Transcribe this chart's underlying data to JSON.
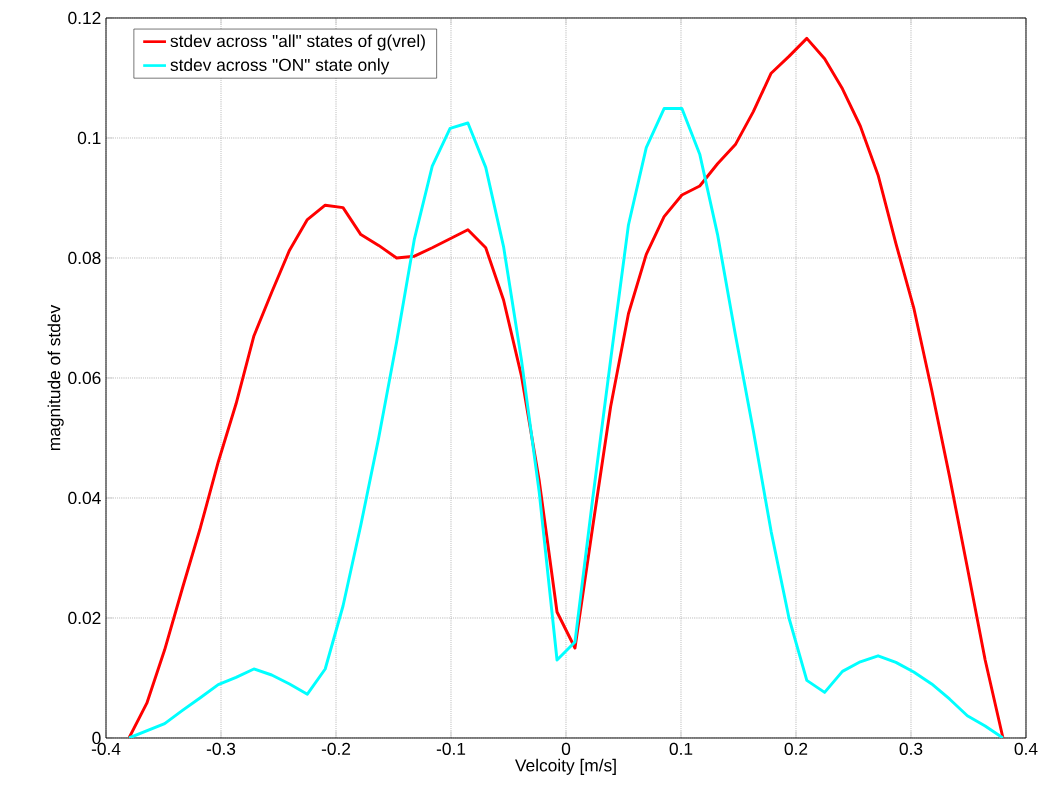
{
  "chart_data": {
    "type": "line",
    "xlabel": "Velcoity [m/s]",
    "ylabel": "magnitude of stdev",
    "x": [
      -0.38,
      -0.3645,
      -0.349,
      -0.3335,
      -0.318,
      -0.3024,
      -0.2869,
      -0.2714,
      -0.2559,
      -0.2404,
      -0.2249,
      -0.2094,
      -0.1939,
      -0.1784,
      -0.1629,
      -0.1473,
      -0.1318,
      -0.1163,
      -0.1008,
      -0.0853,
      -0.0698,
      -0.0543,
      -0.0388,
      -0.0233,
      -0.0078,
      0.0078,
      0.0233,
      0.0388,
      0.0543,
      0.0698,
      0.0853,
      0.1008,
      0.1163,
      0.1318,
      0.1473,
      0.1629,
      0.1784,
      0.1939,
      0.2094,
      0.2249,
      0.2404,
      0.2559,
      0.2714,
      0.2869,
      0.3024,
      0.318,
      0.3335,
      0.349,
      0.3645,
      0.38
    ],
    "series": [
      {
        "name": "stdev across \"all\" states of g(vrel)",
        "color": "#ff0000",
        "values": [
          0,
          0.0058,
          0.0147,
          0.025,
          0.035,
          0.046,
          0.0557,
          0.067,
          0.0743,
          0.0813,
          0.0864,
          0.0888,
          0.0884,
          0.0839,
          0.0821,
          0.08,
          0.0803,
          0.0817,
          0.0832,
          0.0847,
          0.0817,
          0.073,
          0.0604,
          0.0429,
          0.021,
          0.015,
          0.0353,
          0.0552,
          0.0707,
          0.0806,
          0.0869,
          0.0905,
          0.092,
          0.0957,
          0.0989,
          0.1044,
          0.1108,
          0.1136,
          0.1166,
          0.1132,
          0.1082,
          0.102,
          0.0938,
          0.0824,
          0.0717,
          0.058,
          0.0436,
          0.0284,
          0.013,
          0
        ]
      },
      {
        "name": "stdev across \"ON\" state only",
        "color": "#00ffff",
        "values": [
          0,
          0.0012,
          0.0024,
          0.0046,
          0.0067,
          0.0089,
          0.0101,
          0.0115,
          0.0105,
          0.009,
          0.0073,
          0.0115,
          0.022,
          0.0355,
          0.05,
          0.066,
          0.0832,
          0.0953,
          0.1016,
          0.1025,
          0.0951,
          0.0819,
          0.0631,
          0.041,
          0.013,
          0.016,
          0.04,
          0.063,
          0.0855,
          0.0984,
          0.1049,
          0.1049,
          0.0973,
          0.0839,
          0.0672,
          0.0512,
          0.0344,
          0.02,
          0.0096,
          0.0076,
          0.0111,
          0.0127,
          0.0137,
          0.0126,
          0.011,
          0.009,
          0.0065,
          0.0037,
          0.002,
          0
        ]
      }
    ],
    "xlim": [
      -0.4,
      0.4
    ],
    "xticks": [
      -0.4,
      -0.3,
      -0.2,
      -0.1,
      0,
      0.1,
      0.2,
      0.3,
      0.4
    ],
    "ylim": [
      0,
      0.12
    ],
    "yticks": [
      0,
      0.02,
      0.04,
      0.06,
      0.08,
      0.1,
      0.12
    ],
    "grid": true,
    "legend": "top left",
    "marker": "none",
    "line_style": "solid"
  }
}
